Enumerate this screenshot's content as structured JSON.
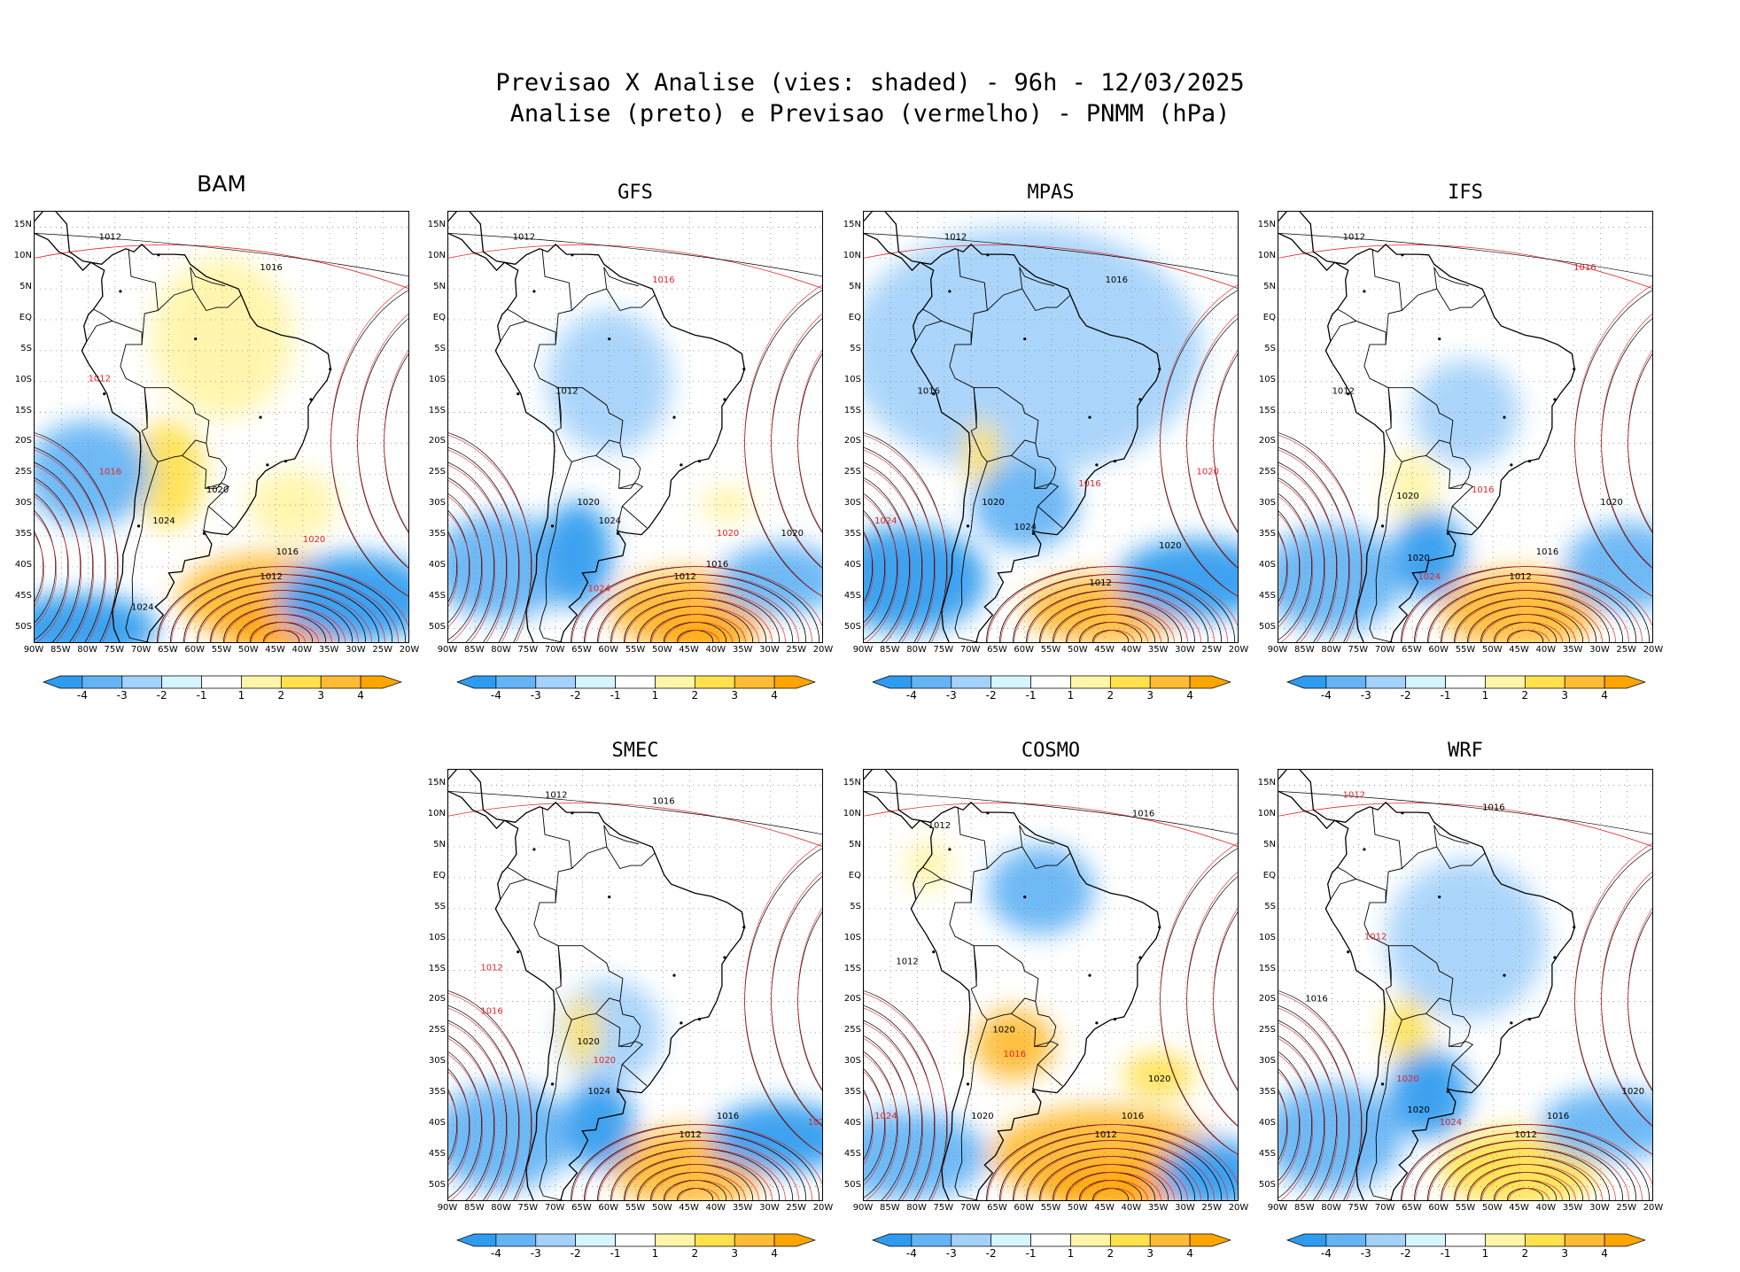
{
  "header": {
    "line1": "Previsao X Analise (vies: shaded) - 96h - 12/03/2025",
    "line2": "Analise (preto) e Previsao (vermelho) - PNMM (hPa)"
  },
  "latitude_labels": [
    "15N",
    "10N",
    "5N",
    "EQ",
    "5S",
    "10S",
    "15S",
    "20S",
    "25S",
    "30S",
    "35S",
    "40S",
    "45S",
    "50S"
  ],
  "longitude_labels": [
    "90W",
    "85W",
    "80W",
    "75W",
    "70W",
    "65W",
    "60W",
    "55W",
    "50W",
    "45W",
    "40W",
    "35W",
    "30W",
    "25W",
    "20W"
  ],
  "colorbar": {
    "labels": [
      "-4",
      "-3",
      "-2",
      "-1",
      "1",
      "2",
      "3",
      "4"
    ],
    "colors": [
      "#2f9bef",
      "#64b4f5",
      "#a4d2fa",
      "#d6f5fd",
      "#ffffff",
      "#fff5a8",
      "#ffe14d",
      "#ffbb33",
      "#ffa500"
    ]
  },
  "contour_labels": {
    "analysis_color": "#000000",
    "forecast_color": "#e0252a",
    "values": [
      "1012",
      "1016",
      "1020",
      "1024"
    ]
  },
  "panels": [
    {
      "model": "BAM"
    },
    {
      "model": "GFS"
    },
    {
      "model": "MPAS"
    },
    {
      "model": "IFS"
    },
    {
      "model": "SMEC"
    },
    {
      "model": "COSMO"
    },
    {
      "model": "WRF"
    }
  ]
}
